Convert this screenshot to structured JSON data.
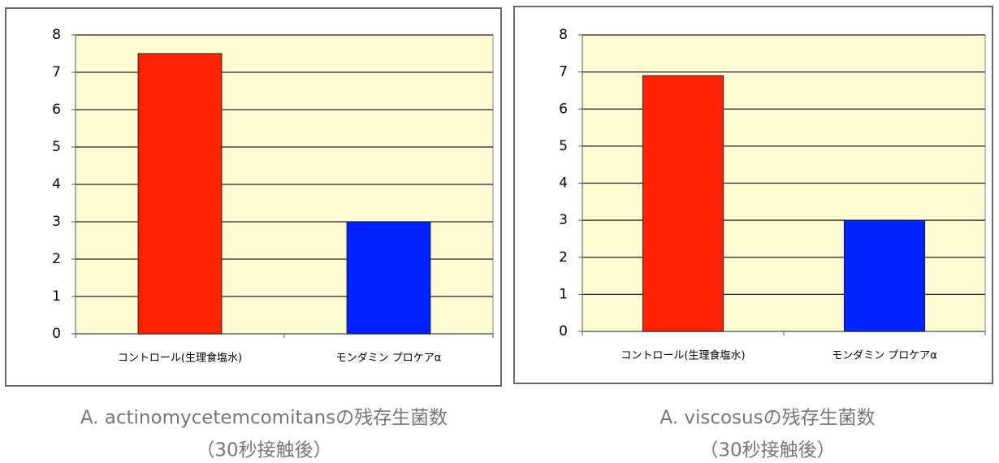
{
  "chart_data": [
    {
      "type": "bar",
      "title": "A. actinomycetemcomitansの残存生菌数",
      "subtitle": "（30秒接触後）",
      "categories": [
        "コントロール(生理食塩水)",
        "モンダミン プロケアα"
      ],
      "values": [
        7.5,
        3
      ],
      "colors": [
        "#ff2200",
        "#0022ff"
      ],
      "ylim": [
        0,
        8
      ],
      "yticks": [
        0,
        1,
        2,
        3,
        4,
        5,
        6,
        7,
        8
      ],
      "grid": true
    },
    {
      "type": "bar",
      "title": "A. viscosusの残存生菌数",
      "subtitle": "（30秒接触後）",
      "categories": [
        "コントロール(生理食塩水)",
        "モンダミン プロケアα"
      ],
      "values": [
        6.9,
        3
      ],
      "colors": [
        "#ff2200",
        "#0022ff"
      ],
      "ylim": [
        0,
        8
      ],
      "yticks": [
        0,
        1,
        2,
        3,
        4,
        5,
        6,
        7,
        8
      ],
      "grid": true
    }
  ]
}
